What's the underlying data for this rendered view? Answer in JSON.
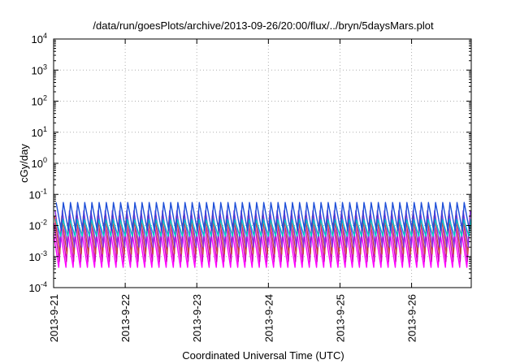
{
  "chart_data": {
    "type": "line",
    "title": "/data/run/goesPlots/archive/2013-09-26/20:00/flux/../bryn/5daysMars.plot",
    "xlabel": "Coordinated Universal Time (UTC)",
    "ylabel": "cGy/day",
    "y_scale": "log",
    "ylim": [
      0.0001,
      10000
    ],
    "xlim": [
      "2013-09-21",
      "2013-09-26 20:00"
    ],
    "x_ticks": [
      "2013-9-21",
      "2013-9-22",
      "2013-9-23",
      "2013-9-24",
      "2013-9-25",
      "2013-9-26"
    ],
    "y_ticks": [
      {
        "base": "10",
        "exp": "-4"
      },
      {
        "base": "10",
        "exp": "-3"
      },
      {
        "base": "10",
        "exp": "-2"
      },
      {
        "base": "10",
        "exp": "-1"
      },
      {
        "base": "10",
        "exp": "0"
      },
      {
        "base": "10",
        "exp": "1"
      },
      {
        "base": "10",
        "exp": "2"
      },
      {
        "base": "10",
        "exp": "3"
      },
      {
        "base": "10",
        "exp": "4"
      }
    ],
    "grid": true,
    "cycles_per_day": 10,
    "series": [
      {
        "color": "#ff00ff",
        "peak": 0.0055,
        "trough": 0.00045
      },
      {
        "color": "#d000c0",
        "peak": 0.012,
        "trough": 0.0007
      },
      {
        "color": "#c84040",
        "peak": 0.02,
        "trough": 0.0012
      },
      {
        "color": "#8a2be2",
        "peak": 0.03,
        "trough": 0.002
      },
      {
        "color": "#00c8c8",
        "peak": 0.016,
        "trough": 0.0045
      },
      {
        "color": "#1e4fd8",
        "peak": 0.055,
        "trough": 0.007
      }
    ]
  }
}
